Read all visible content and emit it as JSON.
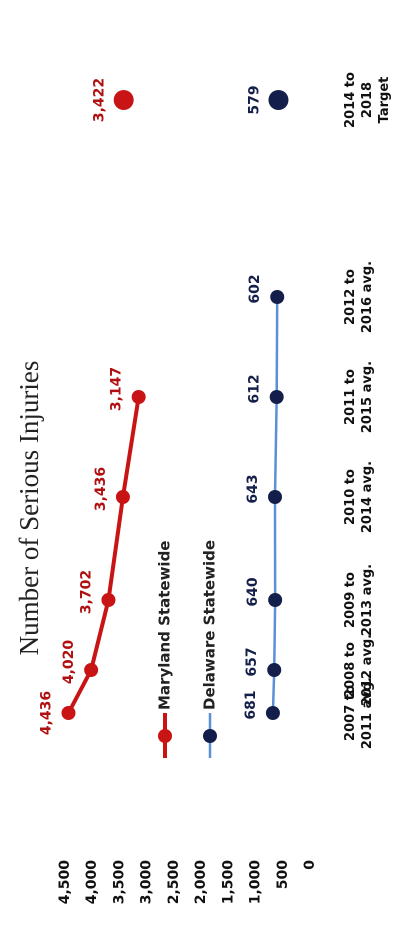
{
  "chart_data": {
    "type": "line",
    "title": "Number of Serious Injuries",
    "categories": [
      [
        "2007 to",
        "2011 avg."
      ],
      [
        "2008 to",
        "2012 avg."
      ],
      [
        "2009 to",
        "2013 avg."
      ],
      [
        "2010 to",
        "2014 avg."
      ],
      [
        "2011 to",
        "2015 avg."
      ],
      [
        "2012 to",
        "2016 avg."
      ]
    ],
    "target_category": [
      "2014 to",
      "2018",
      "Target"
    ],
    "series": [
      {
        "name": "Maryland Statewide",
        "color": "#c81414",
        "marker_color": "#c81414",
        "values": [
          4436,
          4020,
          3702,
          3436,
          3147,
          null
        ],
        "value_labels": [
          "4,436",
          "4,020",
          "3,702",
          "3,436",
          "3,147",
          null
        ],
        "target": 3422,
        "target_label": "3,422"
      },
      {
        "name": "Delaware Statewide",
        "color": "#5b8fd6",
        "marker_color": "#141e4a",
        "values": [
          681,
          657,
          640,
          643,
          612,
          602
        ],
        "target": 579
      }
    ],
    "ylim": [
      0,
      4500
    ],
    "yticks": [
      0,
      500,
      {
        "value": 1000,
        "label": "1,000"
      },
      {
        "value": 1500,
        "label": "1,500"
      },
      {
        "value": 2000,
        "label": "2,000"
      },
      {
        "value": 2500,
        "label": "2,500"
      },
      {
        "value": 3000,
        "label": "3,000"
      },
      {
        "value": 3500,
        "label": "3,500"
      },
      {
        "value": 4000,
        "label": "4,000"
      },
      {
        "value": 4500,
        "label": "4,500"
      }
    ]
  }
}
